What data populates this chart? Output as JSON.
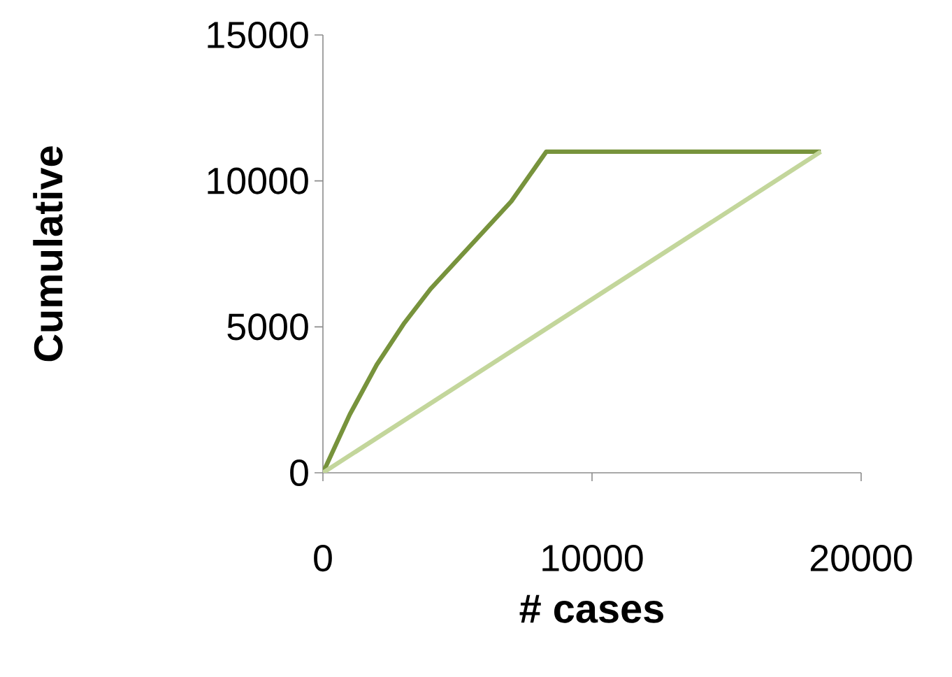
{
  "chart_data": {
    "type": "line",
    "xlabel": "# cases",
    "ylabel": "Cumulative",
    "xlim": [
      0,
      20000
    ],
    "ylim": [
      0,
      15000
    ],
    "xticks": [
      0,
      10000,
      20000
    ],
    "yticks": [
      0,
      5000,
      10000,
      15000
    ],
    "series": [
      {
        "color": "#77933c",
        "x": [
          0,
          1000,
          2000,
          3000,
          4000,
          5000,
          6000,
          7000,
          8300,
          18500
        ],
        "values": [
          0,
          2000,
          3700,
          5100,
          6300,
          7300,
          8300,
          9300,
          11000,
          11000
        ]
      },
      {
        "color": "#c3d69b",
        "x": [
          0,
          18500
        ],
        "values": [
          0,
          11000
        ]
      }
    ],
    "grid": false,
    "marker": "none",
    "line_style": "solid"
  }
}
